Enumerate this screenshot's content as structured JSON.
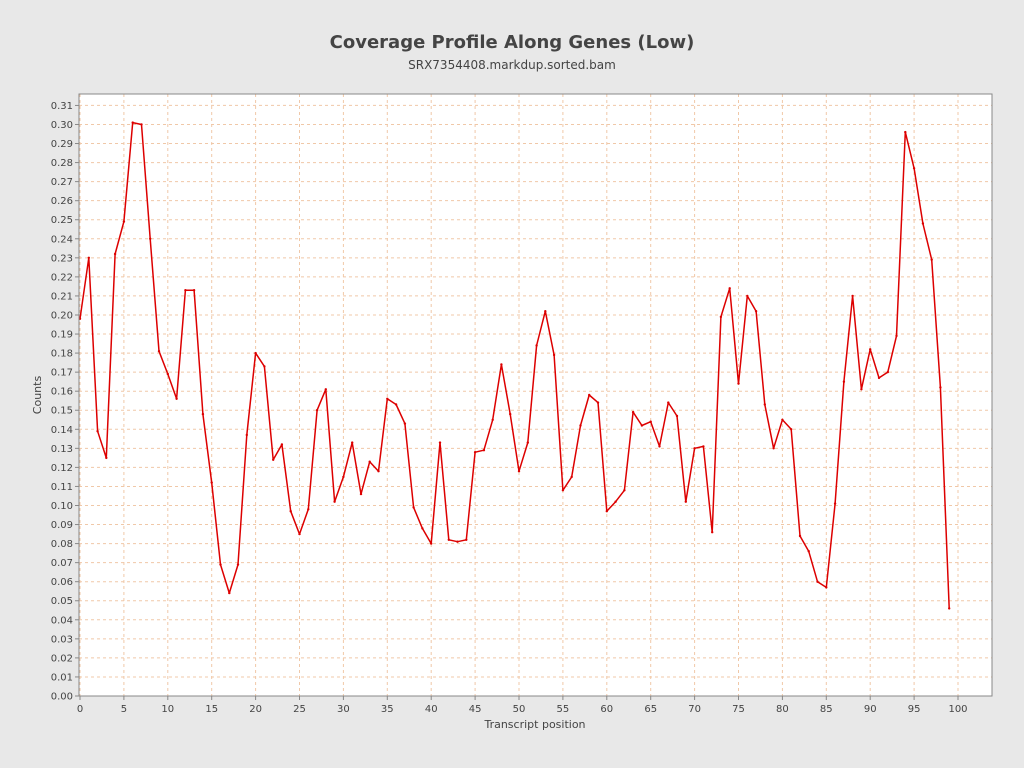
{
  "chart_data": {
    "type": "line",
    "title": "Coverage Profile Along Genes (Low)",
    "subtitle": "SRX7354408.markdup.sorted.bam",
    "xlabel": "Transcript position",
    "ylabel": "Counts",
    "xlim": [
      0,
      104
    ],
    "ylim": [
      0,
      0.316
    ],
    "x_ticks": [
      0,
      5,
      10,
      15,
      20,
      25,
      30,
      35,
      40,
      45,
      50,
      55,
      60,
      65,
      70,
      75,
      80,
      85,
      90,
      95,
      100
    ],
    "y_ticks": [
      "0.00",
      "0.01",
      "0.02",
      "0.03",
      "0.04",
      "0.05",
      "0.06",
      "0.07",
      "0.08",
      "0.09",
      "0.10",
      "0.11",
      "0.12",
      "0.13",
      "0.14",
      "0.15",
      "0.16",
      "0.17",
      "0.18",
      "0.19",
      "0.20",
      "0.21",
      "0.22",
      "0.23",
      "0.24",
      "0.25",
      "0.26",
      "0.27",
      "0.28",
      "0.29",
      "0.30",
      "0.31"
    ],
    "grid": true,
    "series": [
      {
        "color": "#dd0000",
        "x": [
          0,
          1,
          2,
          3,
          4,
          5,
          6,
          7,
          8,
          9,
          10,
          11,
          12,
          13,
          14,
          15,
          16,
          17,
          18,
          19,
          20,
          21,
          22,
          23,
          24,
          25,
          26,
          27,
          28,
          29,
          30,
          31,
          32,
          33,
          34,
          35,
          36,
          37,
          38,
          39,
          40,
          41,
          42,
          43,
          44,
          45,
          46,
          47,
          48,
          49,
          50,
          51,
          52,
          53,
          54,
          55,
          56,
          57,
          58,
          59,
          60,
          61,
          62,
          63,
          64,
          65,
          66,
          67,
          68,
          69,
          70,
          71,
          72,
          73,
          74,
          75,
          76,
          77,
          78,
          79,
          80,
          81,
          82,
          83,
          84,
          85,
          86,
          87,
          88,
          89,
          90,
          91,
          92,
          93,
          94,
          95,
          96,
          97,
          98,
          99
        ],
        "values": [
          0.198,
          0.23,
          0.139,
          0.125,
          0.232,
          0.249,
          0.301,
          0.3,
          0.24,
          0.181,
          0.169,
          0.156,
          0.213,
          0.213,
          0.148,
          0.112,
          0.069,
          0.054,
          0.069,
          0.137,
          0.18,
          0.173,
          0.124,
          0.132,
          0.097,
          0.085,
          0.098,
          0.15,
          0.161,
          0.102,
          0.115,
          0.133,
          0.106,
          0.123,
          0.118,
          0.156,
          0.153,
          0.143,
          0.099,
          0.088,
          0.08,
          0.133,
          0.082,
          0.081,
          0.082,
          0.128,
          0.129,
          0.145,
          0.174,
          0.148,
          0.118,
          0.133,
          0.184,
          0.202,
          0.179,
          0.108,
          0.115,
          0.142,
          0.158,
          0.154,
          0.097,
          0.102,
          0.108,
          0.149,
          0.142,
          0.144,
          0.131,
          0.154,
          0.147,
          0.102,
          0.13,
          0.131,
          0.086,
          0.199,
          0.214,
          0.164,
          0.21,
          0.202,
          0.153,
          0.13,
          0.145,
          0.14,
          0.084,
          0.076,
          0.06,
          0.057,
          0.101,
          0.165,
          0.21,
          0.161,
          0.182,
          0.167,
          0.17,
          0.189,
          0.296,
          0.277,
          0.248,
          0.229,
          0.162,
          0.046
        ]
      }
    ]
  }
}
